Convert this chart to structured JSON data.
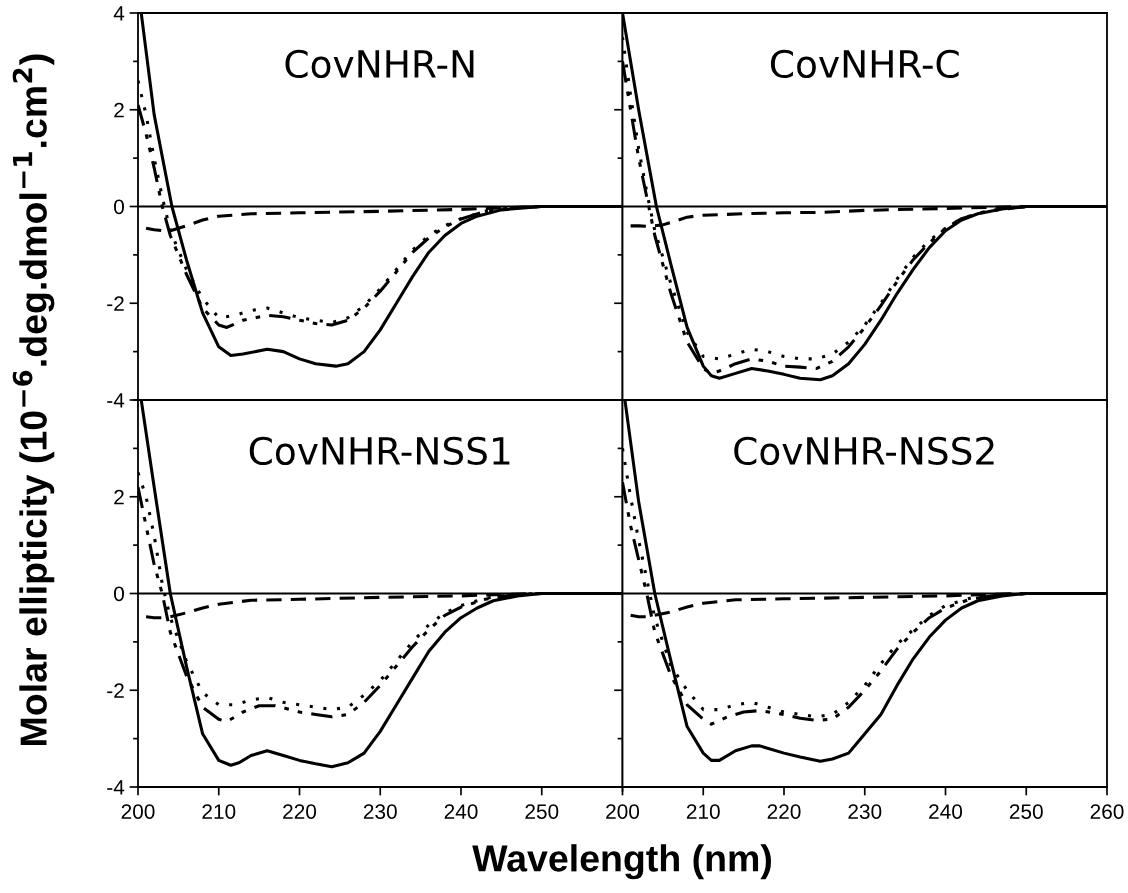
{
  "chart_data": [
    {
      "type": "line",
      "title": "CovNHR-N",
      "ylabel": "Molar ellipticity (10$^{−6}$.deg.dmol$^{−1}$.cm$^{2}$)",
      "xlim": [
        200,
        260
      ],
      "ylim": [
        -4,
        4
      ],
      "xticks": [
        200,
        210,
        220,
        230,
        240,
        250,
        260
      ],
      "yticks": [
        -4,
        {
          "value": -3,
          "label": null
        },
        -2,
        {
          "value": -1,
          "label": null
        },
        0,
        {
          "value": 1,
          "label": null
        },
        2,
        {
          "value": 3,
          "label": null
        },
        4
      ],
      "tick_labels": "y",
      "grid": false,
      "marker": "none",
      "ref_lines": [
        {
          "axis": "y",
          "value": 0,
          "color": "#000000",
          "line_style": "solid"
        }
      ],
      "series": [
        {
          "color": "#000000",
          "line_style": "solid",
          "x": [
            200.4,
            202,
            204.2,
            206,
            208,
            210,
            211.5,
            213,
            216,
            218,
            220,
            222,
            224.5,
            226,
            228,
            230,
            232,
            234,
            236,
            238,
            240,
            242,
            245,
            250,
            255,
            260
          ],
          "values": [
            4,
            1.9,
            0,
            -1.1,
            -2.2,
            -2.9,
            -3.08,
            -3.05,
            -2.95,
            -3.0,
            -3.15,
            -3.25,
            -3.3,
            -3.25,
            -3.0,
            -2.55,
            -2.0,
            -1.45,
            -0.95,
            -0.6,
            -0.35,
            -0.2,
            -0.07,
            0,
            0,
            0
          ]
        },
        {
          "color": "#000000",
          "line_style": "dotted",
          "x": [
            200,
            201,
            202,
            203,
            204,
            206,
            208,
            210,
            212,
            214,
            216,
            218,
            220,
            222,
            224,
            226,
            228,
            230,
            232,
            234,
            236,
            238,
            240,
            243,
            246,
            250,
            260
          ],
          "values": [
            2.6,
            1.9,
            1.0,
            0.2,
            -0.5,
            -1.3,
            -1.9,
            -2.3,
            -2.25,
            -2.15,
            -2.1,
            -2.2,
            -2.3,
            -2.35,
            -2.4,
            -2.3,
            -2.05,
            -1.7,
            -1.3,
            -0.9,
            -0.6,
            -0.4,
            -0.25,
            -0.1,
            -0.03,
            0,
            0
          ]
        },
        {
          "color": "#000000",
          "line_style": "dashdot",
          "x": [
            200,
            201,
            202,
            203,
            204,
            206,
            208,
            210,
            211,
            213,
            216,
            218,
            220,
            222,
            224,
            226,
            228,
            230,
            232,
            234,
            236,
            238,
            240,
            243,
            246,
            250,
            260
          ],
          "values": [
            2.1,
            1.5,
            0.8,
            0.0,
            -0.6,
            -1.4,
            -2.1,
            -2.45,
            -2.5,
            -2.35,
            -2.25,
            -2.28,
            -2.35,
            -2.42,
            -2.45,
            -2.35,
            -2.1,
            -1.75,
            -1.35,
            -0.95,
            -0.65,
            -0.42,
            -0.26,
            -0.1,
            -0.03,
            0,
            0
          ]
        },
        {
          "color": "#000000",
          "line_style": "dashed",
          "x": [
            201,
            202,
            203,
            204,
            206,
            208,
            210,
            214,
            220,
            230,
            240,
            245,
            250,
            260
          ],
          "values": [
            -0.45,
            -0.48,
            -0.5,
            -0.5,
            -0.4,
            -0.28,
            -0.2,
            -0.15,
            -0.13,
            -0.1,
            -0.06,
            -0.03,
            0,
            0
          ]
        }
      ]
    },
    {
      "type": "line",
      "title": "CovNHR-C",
      "xlim": [
        200,
        260
      ],
      "ylim": [
        -4,
        4
      ],
      "xticks": [
        200,
        210,
        220,
        230,
        240,
        250,
        260
      ],
      "yticks": [
        -4,
        {
          "value": -3,
          "label": null
        },
        -2,
        {
          "value": -1,
          "label": null
        },
        0,
        {
          "value": 1,
          "label": null
        },
        2,
        {
          "value": 3,
          "label": null
        },
        4
      ],
      "tick_labels": false,
      "grid": false,
      "marker": "none",
      "ref_lines": [
        {
          "axis": "y",
          "value": 0,
          "color": "#000000",
          "line_style": "solid"
        }
      ],
      "series": [
        {
          "color": "#000000",
          "line_style": "solid",
          "x": [
            200,
            202,
            204.2,
            206,
            208,
            210,
            211,
            212,
            214,
            216,
            218,
            220,
            222,
            224.5,
            226,
            228,
            230,
            232,
            234,
            236,
            238,
            240,
            242,
            244,
            247,
            250,
            260
          ],
          "values": [
            4,
            2.0,
            0,
            -1.2,
            -2.5,
            -3.3,
            -3.5,
            -3.55,
            -3.45,
            -3.35,
            -3.4,
            -3.47,
            -3.55,
            -3.58,
            -3.5,
            -3.25,
            -2.85,
            -2.35,
            -1.8,
            -1.3,
            -0.85,
            -0.5,
            -0.28,
            -0.15,
            -0.05,
            0,
            0
          ]
        },
        {
          "color": "#000000",
          "line_style": "dotted",
          "x": [
            200,
            201,
            202,
            203,
            204,
            206,
            208,
            210,
            212,
            214,
            216,
            218,
            220,
            222,
            224,
            226,
            228,
            230,
            232,
            234,
            236,
            238,
            240,
            242,
            245,
            250,
            260
          ],
          "values": [
            3.5,
            2.3,
            1.2,
            0.3,
            -0.5,
            -1.6,
            -2.6,
            -3.1,
            -3.15,
            -3.05,
            -2.95,
            -3.0,
            -3.1,
            -3.15,
            -3.15,
            -3.05,
            -2.8,
            -2.45,
            -2.0,
            -1.5,
            -1.05,
            -0.7,
            -0.45,
            -0.25,
            -0.1,
            0,
            0
          ]
        },
        {
          "color": "#000000",
          "line_style": "dashdot",
          "x": [
            200,
            201,
            202,
            203,
            204,
            206,
            208,
            210,
            211,
            212,
            214,
            216,
            218,
            220,
            222,
            224,
            226,
            228,
            230,
            232,
            234,
            236,
            238,
            240,
            242,
            245,
            250,
            260
          ],
          "values": [
            3.0,
            2.0,
            1.0,
            0.2,
            -0.6,
            -1.8,
            -2.8,
            -3.35,
            -3.45,
            -3.4,
            -3.25,
            -3.15,
            -3.2,
            -3.3,
            -3.32,
            -3.35,
            -3.2,
            -2.9,
            -2.5,
            -2.05,
            -1.55,
            -1.1,
            -0.75,
            -0.45,
            -0.25,
            -0.1,
            0,
            0
          ]
        },
        {
          "color": "#000000",
          "line_style": "dashed",
          "x": [
            201,
            202,
            203,
            204,
            205,
            206,
            208,
            210,
            215,
            220,
            225,
            230,
            240,
            250,
            260
          ],
          "values": [
            -0.4,
            -0.4,
            -0.41,
            -0.4,
            -0.38,
            -0.33,
            -0.22,
            -0.18,
            -0.15,
            -0.13,
            -0.12,
            -0.08,
            -0.04,
            0,
            0
          ]
        }
      ]
    },
    {
      "type": "line",
      "title": "CovNHR-NSS1",
      "xlabel": "Wavelength (nm)",
      "xlim": [
        200,
        260
      ],
      "ylim": [
        -4,
        4
      ],
      "xticks": [
        200,
        210,
        220,
        230,
        240,
        250,
        {
          "value": 260,
          "label": null
        }
      ],
      "yticks": [
        -4,
        {
          "value": -3,
          "label": null
        },
        -2,
        {
          "value": -1,
          "label": null
        },
        0,
        {
          "value": 1,
          "label": null
        },
        2,
        {
          "value": 3,
          "label": null
        },
        {
          "value": 4,
          "label": null
        }
      ],
      "grid": false,
      "marker": "none",
      "ref_lines": [
        {
          "axis": "y",
          "value": 0,
          "color": "#000000",
          "line_style": "solid"
        }
      ],
      "series": [
        {
          "color": "#000000",
          "line_style": "solid",
          "x": [
            200.4,
            202,
            204,
            206,
            208,
            210,
            211.5,
            212.5,
            214,
            216,
            218,
            220,
            222,
            224,
            226,
            228,
            230,
            232,
            234,
            236,
            238,
            240,
            242,
            244,
            247,
            250,
            260
          ],
          "values": [
            4,
            2.2,
            0,
            -1.5,
            -2.9,
            -3.45,
            -3.55,
            -3.5,
            -3.35,
            -3.25,
            -3.35,
            -3.45,
            -3.52,
            -3.58,
            -3.5,
            -3.3,
            -2.85,
            -2.3,
            -1.75,
            -1.2,
            -0.8,
            -0.5,
            -0.3,
            -0.15,
            -0.05,
            0,
            0
          ]
        },
        {
          "color": "#000000",
          "line_style": "dotted",
          "x": [
            200,
            201,
            202,
            203,
            204,
            206,
            208,
            210,
            212,
            214,
            216,
            218,
            220,
            222,
            224,
            226,
            228,
            230,
            232,
            234,
            236,
            238,
            240,
            243,
            246,
            250,
            260
          ],
          "values": [
            2.5,
            2.0,
            1.2,
            0.2,
            -0.5,
            -1.4,
            -2.05,
            -2.3,
            -2.3,
            -2.2,
            -2.15,
            -2.25,
            -2.3,
            -2.35,
            -2.4,
            -2.35,
            -2.1,
            -1.8,
            -1.4,
            -1.0,
            -0.65,
            -0.4,
            -0.25,
            -0.1,
            -0.03,
            0,
            0
          ]
        },
        {
          "color": "#000000",
          "line_style": "dashdot",
          "x": [
            200,
            201,
            202,
            203,
            204,
            206,
            208,
            210,
            211,
            213,
            215,
            217,
            220,
            222,
            224,
            226,
            228,
            230,
            232,
            234,
            236,
            238,
            240,
            243,
            246,
            250,
            260
          ],
          "values": [
            2.2,
            1.4,
            0.6,
            0,
            -0.8,
            -1.7,
            -2.35,
            -2.6,
            -2.65,
            -2.45,
            -2.32,
            -2.32,
            -2.45,
            -2.5,
            -2.55,
            -2.5,
            -2.25,
            -1.9,
            -1.5,
            -1.1,
            -0.75,
            -0.45,
            -0.28,
            -0.12,
            -0.04,
            0,
            0
          ]
        },
        {
          "color": "#000000",
          "line_style": "dashed",
          "x": [
            201,
            202,
            203,
            204,
            206,
            208,
            210,
            214,
            220,
            230,
            240,
            245,
            250,
            260
          ],
          "values": [
            -0.48,
            -0.5,
            -0.5,
            -0.48,
            -0.4,
            -0.3,
            -0.22,
            -0.14,
            -0.12,
            -0.08,
            -0.05,
            -0.02,
            0,
            0
          ]
        }
      ]
    },
    {
      "type": "line",
      "title": "CovNHR-NSS2",
      "xlim": [
        200,
        260
      ],
      "ylim": [
        -4,
        4
      ],
      "xticks": [
        200,
        210,
        220,
        230,
        240,
        250,
        260
      ],
      "yticks": [
        -4,
        {
          "value": -3,
          "label": null
        },
        -2,
        {
          "value": -1,
          "label": null
        },
        0,
        {
          "value": 1,
          "label": null
        },
        2,
        {
          "value": 3,
          "label": null
        },
        4
      ],
      "tick_labels": "x",
      "grid": false,
      "marker": "none",
      "ref_lines": [
        {
          "axis": "y",
          "value": 0,
          "color": "#000000",
          "line_style": "solid"
        }
      ],
      "series": [
        {
          "color": "#000000",
          "line_style": "solid",
          "x": [
            200.3,
            202,
            204,
            206,
            208,
            210,
            211,
            212,
            214,
            216,
            217,
            220,
            222,
            224.5,
            226,
            228,
            229,
            232,
            234,
            236,
            238,
            240,
            242,
            244,
            247,
            250,
            260
          ],
          "values": [
            4,
            1.9,
            0,
            -1.4,
            -2.75,
            -3.3,
            -3.45,
            -3.45,
            -3.25,
            -3.15,
            -3.15,
            -3.3,
            -3.38,
            -3.47,
            -3.42,
            -3.3,
            -3.1,
            -2.5,
            -1.9,
            -1.35,
            -0.9,
            -0.55,
            -0.3,
            -0.15,
            -0.05,
            0,
            0
          ]
        },
        {
          "color": "#000000",
          "line_style": "dotted",
          "x": [
            200,
            201,
            202,
            203,
            204,
            206,
            208,
            210,
            212,
            214,
            216,
            218,
            220,
            222,
            224,
            226,
            228,
            230,
            232,
            234,
            236,
            238,
            240,
            243,
            246,
            250,
            260
          ],
          "values": [
            3.0,
            2.0,
            1.1,
            0.3,
            -0.5,
            -1.5,
            -2.0,
            -2.4,
            -2.4,
            -2.3,
            -2.25,
            -2.35,
            -2.45,
            -2.5,
            -2.55,
            -2.5,
            -2.25,
            -1.9,
            -1.45,
            -1.05,
            -0.75,
            -0.45,
            -0.25,
            -0.1,
            -0.03,
            0,
            0
          ]
        },
        {
          "color": "#000000",
          "line_style": "dashdot",
          "x": [
            200,
            201,
            202,
            203,
            204,
            206,
            208,
            210,
            211,
            213,
            215,
            217,
            220,
            222,
            224,
            226,
            228,
            230,
            232,
            234,
            236,
            238,
            240,
            243,
            246,
            250,
            260
          ],
          "values": [
            2.3,
            1.4,
            0.7,
            0.0,
            -0.8,
            -1.7,
            -2.3,
            -2.6,
            -2.7,
            -2.55,
            -2.45,
            -2.42,
            -2.5,
            -2.58,
            -2.62,
            -2.6,
            -2.35,
            -2.0,
            -1.6,
            -1.15,
            -0.8,
            -0.5,
            -0.3,
            -0.12,
            -0.04,
            0,
            0
          ]
        },
        {
          "color": "#000000",
          "line_style": "dashed",
          "x": [
            201,
            202,
            203,
            204,
            206,
            208,
            210,
            214,
            220,
            230,
            240,
            245,
            250,
            260
          ],
          "values": [
            -0.45,
            -0.48,
            -0.48,
            -0.45,
            -0.38,
            -0.28,
            -0.2,
            -0.13,
            -0.11,
            -0.08,
            -0.05,
            -0.02,
            0,
            0
          ]
        }
      ]
    }
  ]
}
